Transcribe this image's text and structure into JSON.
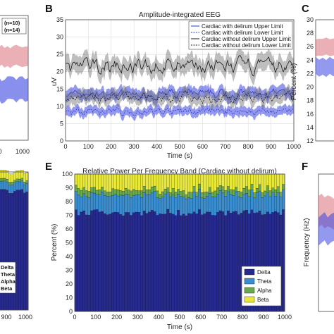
{
  "colors": {
    "delirium_band": "#3b45e0",
    "delirium_line": "#2a35c8",
    "no_delirium_band": "#6e6e6e",
    "no_delirium_line": "#1a1a1a",
    "delta": "#262a8e",
    "theta": "#3a8ed0",
    "alpha": "#6aa84f",
    "beta": "#e8e83a",
    "red_band": "#d9707a",
    "red_line": "#b03040"
  },
  "panel_letters": {
    "b": "B",
    "c": "C",
    "e": "E",
    "f": "F"
  },
  "chart_data": [
    {
      "id": "A",
      "type": "area",
      "legend": [
        "(n=10)",
        "(n=14)"
      ],
      "x_ticks": [
        "0",
        "1000"
      ]
    },
    {
      "id": "B",
      "type": "line",
      "title": "Amplitude-integrated EEG",
      "xlabel": "Time (s)",
      "ylabel": "uV",
      "xlim": [
        0,
        1000
      ],
      "ylim": [
        0,
        35
      ],
      "x_ticks": [
        "0",
        "100",
        "200",
        "300",
        "400",
        "500",
        "600",
        "700",
        "800",
        "900",
        "1000"
      ],
      "y_ticks": [
        "0",
        "5",
        "10",
        "15",
        "20",
        "25",
        "30",
        "35"
      ],
      "grid": true,
      "legend_position": "top-right",
      "series": [
        {
          "name": "Cardiac with delirum Upper Limit",
          "group": "delirium",
          "style": "solid",
          "mean": 13.5,
          "band": 1.6
        },
        {
          "name": "Cardiac with delirum Lower Limit",
          "group": "delirium",
          "style": "dashed",
          "mean": 8.5,
          "band": 1.3
        },
        {
          "name": "Cardiac without delirum Upper Limit",
          "group": "no_delirium",
          "style": "solid",
          "mean": 21.5,
          "band": 2.5
        },
        {
          "name": "Cardiac without delirum Lower Limit",
          "group": "no_delirium",
          "style": "dashed",
          "mean": 12.5,
          "band": 1.8
        }
      ]
    },
    {
      "id": "C",
      "type": "area",
      "ylabel": "Percent (%)",
      "ylim": [
        12,
        30
      ],
      "y_ticks": [
        "12",
        "14",
        "16",
        "18",
        "20",
        "22",
        "24",
        "26",
        "28",
        "30"
      ]
    },
    {
      "id": "D",
      "type": "bar",
      "legend": [
        "Delta",
        "Theta",
        "Alpha",
        "Beta"
      ],
      "x_ticks": [
        "900",
        "1000"
      ]
    },
    {
      "id": "E",
      "type": "bar",
      "title": "Relative Power Per Frequency Band (Cardiac without delirum)",
      "xlabel": "Time (s)",
      "ylabel": "Percent (%)",
      "xlim": [
        0,
        1000
      ],
      "ylim": [
        0,
        100
      ],
      "x_ticks": [
        "0",
        "100",
        "200",
        "300",
        "400",
        "500",
        "600",
        "700",
        "800",
        "900",
        "1000"
      ],
      "y_ticks": [
        "0",
        "10",
        "20",
        "30",
        "40",
        "50",
        "60",
        "70",
        "80",
        "90",
        "100"
      ],
      "legend_position": "bottom-right",
      "series": [
        {
          "name": "Delta",
          "mean_percent": 72
        },
        {
          "name": "Theta",
          "mean_percent": 13
        },
        {
          "name": "Alpha",
          "mean_percent": 4
        },
        {
          "name": "Beta",
          "mean_percent": 11
        }
      ]
    },
    {
      "id": "F",
      "type": "area",
      "ylabel": "Frequency (Hz)"
    }
  ]
}
